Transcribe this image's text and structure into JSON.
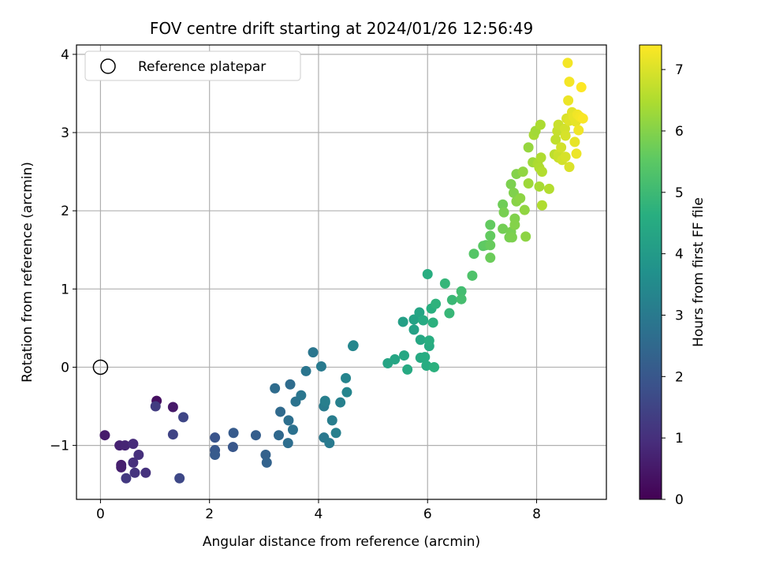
{
  "chart_data": {
    "type": "scatter",
    "title": "FOV centre drift starting at 2024/01/26 12:56:49",
    "xlabel": "Angular distance from reference (arcmin)",
    "ylabel": "Rotation from reference (arcmin)",
    "xlim": [
      -0.44,
      9.28
    ],
    "ylim": [
      -1.69,
      4.12
    ],
    "xticks": [
      "0",
      "2",
      "4",
      "6",
      "8"
    ],
    "yticks": [
      "−1",
      "0",
      "1",
      "2",
      "3",
      "4"
    ],
    "grid": true,
    "legend": {
      "placement": "top-left",
      "entries": [
        "Reference platepar"
      ]
    },
    "reference": {
      "x": 0,
      "y": 0
    },
    "colorbar": {
      "label": "Hours from first FF file",
      "range": [
        0,
        7.4
      ],
      "ticks": [
        "0",
        "1",
        "2",
        "3",
        "4",
        "5",
        "6",
        "7"
      ],
      "colormap": "viridis"
    },
    "points": [
      [
        0.08,
        -0.87,
        0.55
      ],
      [
        0.35,
        -1.0,
        0.7
      ],
      [
        0.45,
        -1.0,
        0.75
      ],
      [
        0.38,
        -1.25,
        0.6
      ],
      [
        0.38,
        -1.28,
        0.65
      ],
      [
        0.47,
        -1.42,
        1.2
      ],
      [
        0.6,
        -1.22,
        1.0
      ],
      [
        0.63,
        -1.35,
        1.1
      ],
      [
        0.6,
        -0.98,
        0.9
      ],
      [
        0.7,
        -1.12,
        1.0
      ],
      [
        0.83,
        -1.35,
        1.05
      ],
      [
        1.03,
        -0.43,
        0.3
      ],
      [
        1.01,
        -0.5,
        1.3
      ],
      [
        1.33,
        -0.51,
        0.5
      ],
      [
        1.33,
        -0.86,
        1.5
      ],
      [
        1.45,
        -1.42,
        1.6
      ],
      [
        1.52,
        -0.64,
        1.55
      ],
      [
        2.1,
        -0.9,
        1.9
      ],
      [
        2.1,
        -1.06,
        2.0
      ],
      [
        2.1,
        -1.12,
        2.1
      ],
      [
        2.43,
        -1.02,
        2.0
      ],
      [
        2.44,
        -0.84,
        2.1
      ],
      [
        2.85,
        -0.87,
        2.2
      ],
      [
        3.03,
        -1.12,
        2.3
      ],
      [
        3.05,
        -1.22,
        2.35
      ],
      [
        3.2,
        -0.27,
        2.6
      ],
      [
        3.27,
        -0.87,
        2.5
      ],
      [
        3.3,
        -0.57,
        2.55
      ],
      [
        3.44,
        -0.97,
        2.65
      ],
      [
        3.45,
        -0.68,
        2.7
      ],
      [
        3.48,
        -0.22,
        2.6
      ],
      [
        3.53,
        -0.8,
        2.75
      ],
      [
        3.58,
        -0.44,
        2.8
      ],
      [
        3.68,
        -0.36,
        2.9
      ],
      [
        3.77,
        -0.05,
        2.85
      ],
      [
        3.9,
        0.19,
        2.9
      ],
      [
        4.05,
        0.01,
        3.0
      ],
      [
        4.1,
        -0.5,
        3.05
      ],
      [
        4.12,
        -0.45,
        3.1
      ],
      [
        4.1,
        -0.9,
        2.95
      ],
      [
        4.12,
        -0.43,
        3.15
      ],
      [
        4.2,
        -0.97,
        3.0
      ],
      [
        4.25,
        -0.68,
        3.1
      ],
      [
        4.32,
        -0.84,
        3.2
      ],
      [
        4.4,
        -0.45,
        3.2
      ],
      [
        4.5,
        -0.14,
        3.3
      ],
      [
        4.52,
        -0.32,
        3.35
      ],
      [
        4.63,
        0.27,
        3.35
      ],
      [
        4.64,
        0.28,
        3.4
      ],
      [
        5.27,
        0.05,
        4.3
      ],
      [
        5.4,
        0.1,
        4.35
      ],
      [
        5.55,
        0.58,
        4.15
      ],
      [
        5.57,
        0.15,
        4.4
      ],
      [
        5.63,
        -0.03,
        4.45
      ],
      [
        5.75,
        0.48,
        4.2
      ],
      [
        5.75,
        0.61,
        4.25
      ],
      [
        5.85,
        0.7,
        4.3
      ],
      [
        5.87,
        0.35,
        4.4
      ],
      [
        5.87,
        0.12,
        4.45
      ],
      [
        5.92,
        0.6,
        4.5
      ],
      [
        5.95,
        0.13,
        4.55
      ],
      [
        5.98,
        0.02,
        4.55
      ],
      [
        6.0,
        1.19,
        4.6
      ],
      [
        6.03,
        0.27,
        4.5
      ],
      [
        6.03,
        0.34,
        4.6
      ],
      [
        6.07,
        0.75,
        4.65
      ],
      [
        6.1,
        0.57,
        4.7
      ],
      [
        6.12,
        0.0,
        4.7
      ],
      [
        6.15,
        0.81,
        4.75
      ],
      [
        6.32,
        1.07,
        4.85
      ],
      [
        6.4,
        0.69,
        4.9
      ],
      [
        6.45,
        0.86,
        4.95
      ],
      [
        6.62,
        0.97,
        5.1
      ],
      [
        6.62,
        0.87,
        5.15
      ],
      [
        6.82,
        1.17,
        5.3
      ],
      [
        6.85,
        1.45,
        5.4
      ],
      [
        7.02,
        1.55,
        5.5
      ],
      [
        7.07,
        1.56,
        5.55
      ],
      [
        7.15,
        1.82,
        5.6
      ],
      [
        7.15,
        1.68,
        5.6
      ],
      [
        7.15,
        1.56,
        5.65
      ],
      [
        7.15,
        1.4,
        5.7
      ],
      [
        7.38,
        2.08,
        5.75
      ],
      [
        7.38,
        1.77,
        5.8
      ],
      [
        7.4,
        1.98,
        5.85
      ],
      [
        7.5,
        1.66,
        5.85
      ],
      [
        7.53,
        1.73,
        5.85
      ],
      [
        7.53,
        2.34,
        5.9
      ],
      [
        7.55,
        1.66,
        5.9
      ],
      [
        7.58,
        2.23,
        5.95
      ],
      [
        7.6,
        1.9,
        5.95
      ],
      [
        7.6,
        1.82,
        6.0
      ],
      [
        7.63,
        2.47,
        6.0
      ],
      [
        7.63,
        2.12,
        6.05
      ],
      [
        7.7,
        2.16,
        6.1
      ],
      [
        7.75,
        2.5,
        6.15
      ],
      [
        7.78,
        2.01,
        6.15
      ],
      [
        7.8,
        1.67,
        6.1
      ],
      [
        7.85,
        2.81,
        6.2
      ],
      [
        7.85,
        2.35,
        6.3
      ],
      [
        7.93,
        2.62,
        6.3
      ],
      [
        7.95,
        2.97,
        6.4
      ],
      [
        7.98,
        3.02,
        6.35
      ],
      [
        8.02,
        2.6,
        6.45
      ],
      [
        8.05,
        2.55,
        6.5
      ],
      [
        8.05,
        2.31,
        6.4
      ],
      [
        8.07,
        3.1,
        6.45
      ],
      [
        8.08,
        2.68,
        6.5
      ],
      [
        8.1,
        2.5,
        6.55
      ],
      [
        8.1,
        2.07,
        6.5
      ],
      [
        8.23,
        2.28,
        6.55
      ],
      [
        8.33,
        2.72,
        6.65
      ],
      [
        8.35,
        2.91,
        6.7
      ],
      [
        8.38,
        3.02,
        6.75
      ],
      [
        8.4,
        3.1,
        6.8
      ],
      [
        8.4,
        2.72,
        6.85
      ],
      [
        8.4,
        2.68,
        6.8
      ],
      [
        8.45,
        2.81,
        6.9
      ],
      [
        8.47,
        2.65,
        6.9
      ],
      [
        8.52,
        3.05,
        6.9
      ],
      [
        8.53,
        2.96,
        6.95
      ],
      [
        8.53,
        2.69,
        6.95
      ],
      [
        8.55,
        3.18,
        7.0
      ],
      [
        8.57,
        3.89,
        7.3
      ],
      [
        8.58,
        3.41,
        7.2
      ],
      [
        8.6,
        3.65,
        7.3
      ],
      [
        8.6,
        3.15,
        7.05
      ],
      [
        8.6,
        2.56,
        7.0
      ],
      [
        8.65,
        3.26,
        7.1
      ],
      [
        8.68,
        3.2,
        7.15
      ],
      [
        8.7,
        2.88,
        7.15
      ],
      [
        8.72,
        3.14,
        7.15
      ],
      [
        8.73,
        2.73,
        7.2
      ],
      [
        8.75,
        3.23,
        7.25
      ],
      [
        8.77,
        3.03,
        7.25
      ],
      [
        8.8,
        3.2,
        7.3
      ],
      [
        8.82,
        3.58,
        7.4
      ],
      [
        8.85,
        3.18,
        7.35
      ]
    ]
  }
}
